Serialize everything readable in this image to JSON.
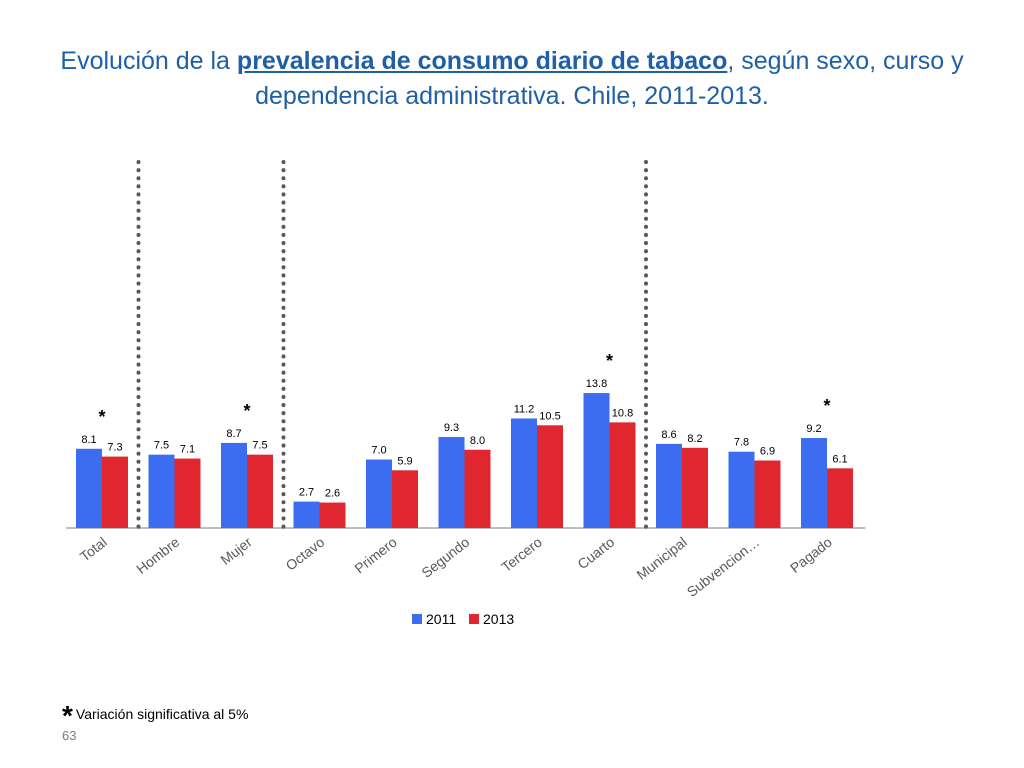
{
  "title": {
    "part1": "Evolución de la ",
    "emphasis": "prevalencia de consumo diario de tabaco",
    "part2": ", según sexo, curso y dependencia administrativa. Chile, 2011-2013."
  },
  "colors": {
    "s2011": "#3c6df0",
    "s2013": "#e0262f",
    "axis": "#bfbfbf",
    "divider": "#595959",
    "label": "#595959"
  },
  "chart_data": {
    "type": "bar",
    "categories": [
      "Total",
      "Hombre",
      "Mujer",
      "Octavo",
      "Primero",
      "Segundo",
      "Tercero",
      "Cuarto",
      "Municipal",
      "Subvencion…",
      "Pagado"
    ],
    "series": [
      {
        "name": "2011",
        "values": [
          8.1,
          7.5,
          8.7,
          2.7,
          7.0,
          9.3,
          11.2,
          13.8,
          8.6,
          7.8,
          9.2
        ]
      },
      {
        "name": "2013",
        "values": [
          7.3,
          7.1,
          7.5,
          2.6,
          5.9,
          8.0,
          10.5,
          10.8,
          8.2,
          6.9,
          6.1
        ]
      }
    ],
    "value_labels": [
      [
        "8.1",
        "7.5",
        "8.7",
        "2.7",
        "7.0",
        "9.3",
        "11.2",
        "13.8",
        "8.6",
        "7.8",
        "9.2"
      ],
      [
        "7.3",
        "7.1",
        "7.5",
        "2.6",
        "5.9",
        "8.0",
        "10.5",
        "10.8",
        "8.2",
        "6.9",
        "6.1"
      ]
    ],
    "significant": [
      true,
      false,
      true,
      false,
      false,
      false,
      false,
      true,
      false,
      false,
      true
    ],
    "significance_marker": "*",
    "dividers_after": [
      0,
      2,
      7
    ],
    "ylim": [
      0,
      15
    ],
    "legend": [
      "2011",
      "2013"
    ],
    "legend_position": "bottom"
  },
  "footnote": {
    "star": "*",
    "text": "Variación significativa al 5%"
  },
  "page_number": "63"
}
